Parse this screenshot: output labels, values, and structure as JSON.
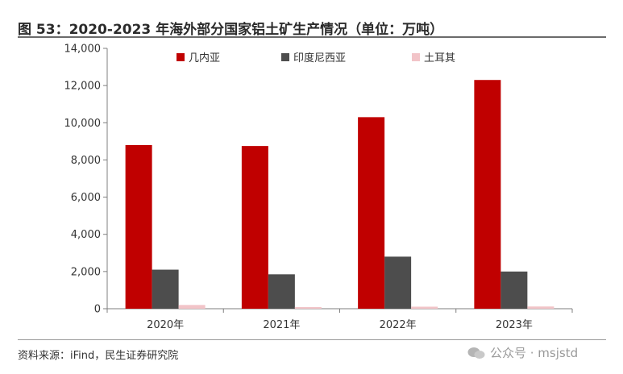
{
  "figure_title": "图 53：2020-2023 年海外部分国家铝土矿生产情况（单位：万吨）",
  "source": "资料来源：iFind，民生证券研究院",
  "watermark": "公众号 · msjstd",
  "colors": {
    "guinea": "#C00000",
    "indonesia": "#4D4D4D",
    "turkey": "#F2C4C8"
  },
  "chart_data": {
    "type": "bar",
    "categories": [
      "2020年",
      "2021年",
      "2022年",
      "2023年"
    ],
    "series": [
      {
        "name": "几内亚",
        "values": [
          8800,
          8750,
          10300,
          12300
        ]
      },
      {
        "name": "印度尼西亚",
        "values": [
          2100,
          1850,
          2800,
          2000
        ]
      },
      {
        "name": "土耳其",
        "values": [
          200,
          90,
          110,
          120
        ]
      }
    ],
    "ylim": [
      0,
      14000
    ],
    "yticks": [
      "0",
      "2,000",
      "4,000",
      "6,000",
      "8,000",
      "10,000",
      "12,000",
      "14,000"
    ],
    "ytick_values": [
      0,
      2000,
      4000,
      6000,
      8000,
      10000,
      12000,
      14000
    ],
    "grid": false,
    "legend": "top"
  }
}
